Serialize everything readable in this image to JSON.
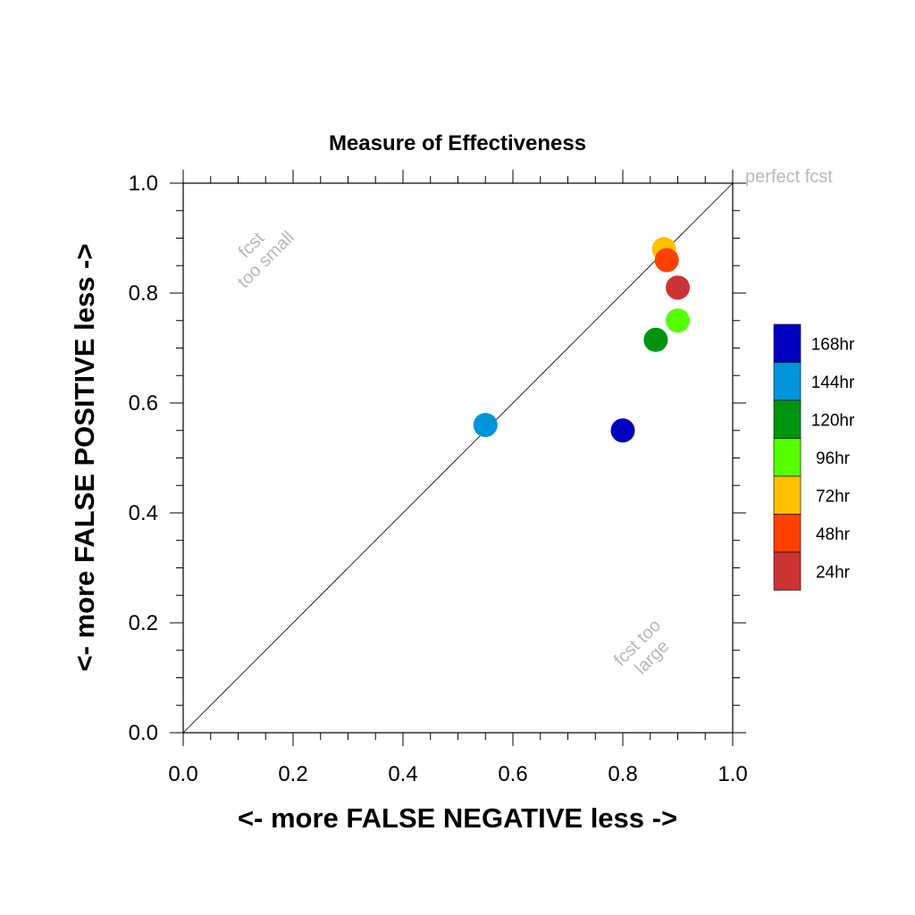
{
  "chart_data": {
    "type": "scatter",
    "title": "Measure of Effectiveness",
    "xlabel": "<- more   FALSE NEGATIVE   less ->",
    "ylabel": "<- more   FALSE POSITIVE   less ->",
    "xlim": [
      0.0,
      1.0
    ],
    "ylim": [
      0.0,
      1.0
    ],
    "xticks": [
      "0.0",
      "0.2",
      "0.4",
      "0.6",
      "0.8",
      "1.0"
    ],
    "yticks": [
      "0.0",
      "0.2",
      "0.4",
      "0.6",
      "0.8",
      "1.0"
    ],
    "grid": false,
    "diagonal_reference_line": true,
    "annotations": {
      "perfect": "perfect fcst",
      "too_small_line1": "fcst",
      "too_small_line2": "too small",
      "too_large_line1": "fcst too",
      "too_large_line2": "large"
    },
    "legend_position": "right",
    "series": [
      {
        "name": "168hr",
        "color": "#0000c0",
        "x": 0.8,
        "y": 0.55
      },
      {
        "name": "144hr",
        "color": "#0095db",
        "x": 0.55,
        "y": 0.56
      },
      {
        "name": "120hr",
        "color": "#009411",
        "x": 0.86,
        "y": 0.715
      },
      {
        "name": "96hr",
        "color": "#55ff00",
        "x": 0.9,
        "y": 0.75
      },
      {
        "name": "72hr",
        "color": "#ffc000",
        "x": 0.875,
        "y": 0.88
      },
      {
        "name": "48hr",
        "color": "#ff4000",
        "x": 0.88,
        "y": 0.86
      },
      {
        "name": "24hr",
        "color": "#cc3333",
        "x": 0.9,
        "y": 0.81
      }
    ]
  }
}
